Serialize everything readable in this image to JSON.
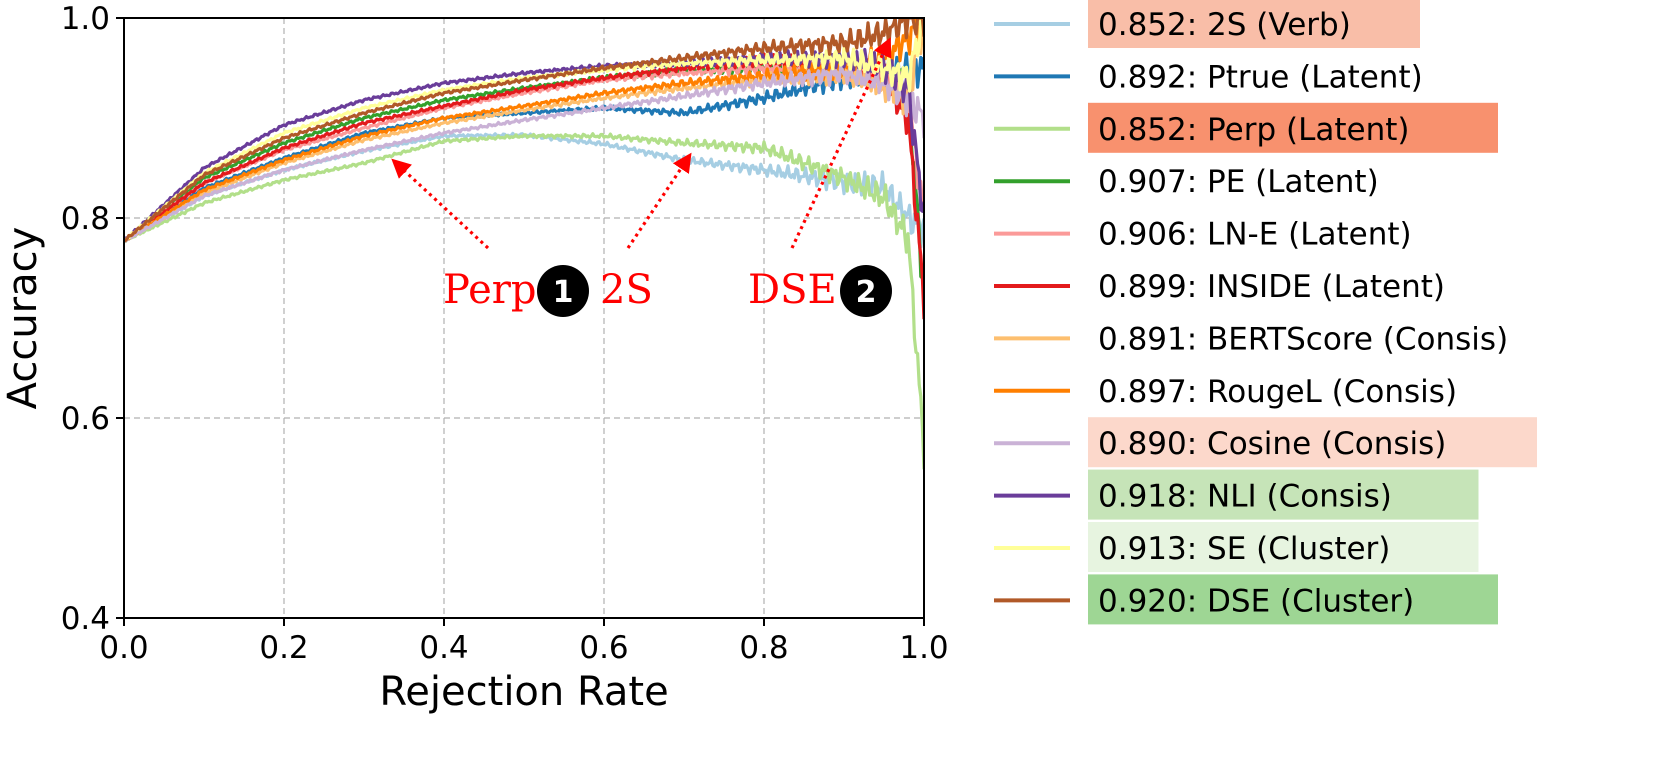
{
  "chart_data": {
    "type": "line",
    "title": "",
    "xlabel": "Rejection Rate",
    "ylabel": "Accuracy",
    "xlim": [
      0.0,
      1.0
    ],
    "ylim": [
      0.4,
      1.0
    ],
    "xticks": [
      "0.0",
      "0.2",
      "0.4",
      "0.6",
      "0.8",
      "1.0"
    ],
    "yticks": [
      "0.4",
      "0.6",
      "0.8",
      "1.0"
    ],
    "grid": true,
    "legend_position": "outside-right",
    "series": [
      {
        "legend": "0.852: 2S (Verb)",
        "color": "#a6cee3",
        "highlight": "#f9bea8",
        "x": [
          0.0,
          0.1,
          0.2,
          0.3,
          0.4,
          0.5,
          0.6,
          0.7,
          0.8,
          0.9,
          0.95,
          0.98,
          1.0
        ],
        "y": [
          0.777,
          0.822,
          0.848,
          0.867,
          0.882,
          0.883,
          0.874,
          0.858,
          0.848,
          0.836,
          0.83,
          0.8,
          0.79
        ]
      },
      {
        "legend": "0.892: Ptrue (Latent)",
        "color": "#1f78b4",
        "highlight": "",
        "x": [
          0.0,
          0.1,
          0.2,
          0.3,
          0.4,
          0.5,
          0.6,
          0.7,
          0.8,
          0.9,
          0.95,
          0.98,
          1.0
        ],
        "y": [
          0.777,
          0.83,
          0.86,
          0.885,
          0.9,
          0.905,
          0.91,
          0.905,
          0.92,
          0.94,
          0.945,
          0.95,
          0.95
        ]
      },
      {
        "legend": "0.852: Perp (Latent)",
        "color": "#b2df8a",
        "highlight": "#f8916e",
        "x": [
          0.0,
          0.1,
          0.2,
          0.3,
          0.4,
          0.5,
          0.6,
          0.7,
          0.8,
          0.9,
          0.95,
          0.98,
          1.0
        ],
        "y": [
          0.777,
          0.815,
          0.838,
          0.855,
          0.877,
          0.882,
          0.882,
          0.875,
          0.87,
          0.84,
          0.82,
          0.78,
          0.57
        ]
      },
      {
        "legend": "0.907: PE (Latent)",
        "color": "#33a02c",
        "highlight": "",
        "x": [
          0.0,
          0.1,
          0.2,
          0.3,
          0.4,
          0.5,
          0.6,
          0.7,
          0.8,
          0.9,
          0.95,
          0.98,
          1.0
        ],
        "y": [
          0.777,
          0.84,
          0.875,
          0.9,
          0.918,
          0.93,
          0.94,
          0.948,
          0.95,
          0.95,
          0.945,
          0.93,
          0.72
        ]
      },
      {
        "legend": "0.906: LN-E (Latent)",
        "color": "#fb9a99",
        "highlight": "",
        "x": [
          0.0,
          0.1,
          0.2,
          0.3,
          0.4,
          0.5,
          0.6,
          0.7,
          0.8,
          0.9,
          0.95,
          0.98,
          1.0
        ],
        "y": [
          0.777,
          0.835,
          0.868,
          0.89,
          0.91,
          0.925,
          0.938,
          0.945,
          0.95,
          0.95,
          0.94,
          0.92,
          0.8
        ]
      },
      {
        "legend": "0.899: INSIDE (Latent)",
        "color": "#e31a1c",
        "highlight": "",
        "x": [
          0.0,
          0.1,
          0.2,
          0.3,
          0.4,
          0.5,
          0.6,
          0.7,
          0.8,
          0.9,
          0.95,
          0.98,
          1.0
        ],
        "y": [
          0.777,
          0.835,
          0.87,
          0.895,
          0.912,
          0.928,
          0.94,
          0.95,
          0.958,
          0.95,
          0.94,
          0.9,
          0.72
        ]
      },
      {
        "legend": "0.891: BERTScore (Consis)",
        "color": "#fdbf6f",
        "highlight": "",
        "x": [
          0.0,
          0.1,
          0.2,
          0.3,
          0.4,
          0.5,
          0.6,
          0.7,
          0.8,
          0.9,
          0.95,
          0.98,
          1.0
        ],
        "y": [
          0.777,
          0.825,
          0.855,
          0.878,
          0.895,
          0.908,
          0.92,
          0.93,
          0.938,
          0.945,
          0.93,
          0.92,
          1.0
        ]
      },
      {
        "legend": "0.897: RougeL (Consis)",
        "color": "#ff7f00",
        "highlight": "",
        "x": [
          0.0,
          0.1,
          0.2,
          0.3,
          0.4,
          0.5,
          0.6,
          0.7,
          0.8,
          0.9,
          0.95,
          0.98,
          1.0
        ],
        "y": [
          0.777,
          0.828,
          0.858,
          0.882,
          0.9,
          0.912,
          0.925,
          0.935,
          0.942,
          0.95,
          0.96,
          0.98,
          1.0
        ]
      },
      {
        "legend": "0.890: Cosine (Consis)",
        "color": "#cab2d6",
        "highlight": "#fcd8cb",
        "x": [
          0.0,
          0.1,
          0.2,
          0.3,
          0.4,
          0.5,
          0.6,
          0.7,
          0.8,
          0.9,
          0.95,
          0.98,
          1.0
        ],
        "y": [
          0.777,
          0.822,
          0.848,
          0.868,
          0.885,
          0.898,
          0.91,
          0.922,
          0.935,
          0.945,
          0.935,
          0.92,
          0.9
        ]
      },
      {
        "legend": "0.918: NLI (Consis)",
        "color": "#6a3d9a",
        "highlight": "#c6e4b8",
        "x": [
          0.0,
          0.1,
          0.2,
          0.3,
          0.4,
          0.5,
          0.6,
          0.7,
          0.8,
          0.9,
          0.95,
          0.98,
          1.0
        ],
        "y": [
          0.777,
          0.85,
          0.893,
          0.918,
          0.935,
          0.945,
          0.952,
          0.955,
          0.96,
          0.96,
          0.95,
          0.93,
          0.8
        ]
      },
      {
        "legend": "0.913: SE (Cluster)",
        "color": "#ffff99",
        "highlight": "#e7f4e0",
        "x": [
          0.0,
          0.1,
          0.2,
          0.3,
          0.4,
          0.5,
          0.6,
          0.7,
          0.8,
          0.9,
          0.95,
          0.98,
          1.0
        ],
        "y": [
          0.777,
          0.845,
          0.885,
          0.91,
          0.928,
          0.94,
          0.948,
          0.955,
          0.958,
          0.96,
          0.95,
          0.94,
          1.0
        ]
      },
      {
        "legend": "0.920: DSE (Cluster)",
        "color": "#b15928",
        "highlight": "#9ed694",
        "x": [
          0.0,
          0.1,
          0.2,
          0.3,
          0.4,
          0.5,
          0.6,
          0.7,
          0.8,
          0.9,
          0.95,
          0.98,
          1.0
        ],
        "y": [
          0.777,
          0.843,
          0.88,
          0.905,
          0.925,
          0.938,
          0.95,
          0.96,
          0.97,
          0.975,
          0.985,
          1.0,
          1.0
        ]
      }
    ],
    "annotations": [
      {
        "text": "Perp",
        "badge": "1",
        "arrow_from": [
          0.455,
          0.77
        ],
        "arrow_to": [
          0.34,
          0.855
        ]
      },
      {
        "text": "2S",
        "badge": "",
        "arrow_from": [
          0.63,
          0.77
        ],
        "arrow_to": [
          0.705,
          0.86
        ]
      },
      {
        "text": "DSE",
        "badge": "2",
        "arrow_from": [
          0.835,
          0.77
        ],
        "arrow_to": [
          0.955,
          0.975
        ]
      }
    ]
  }
}
